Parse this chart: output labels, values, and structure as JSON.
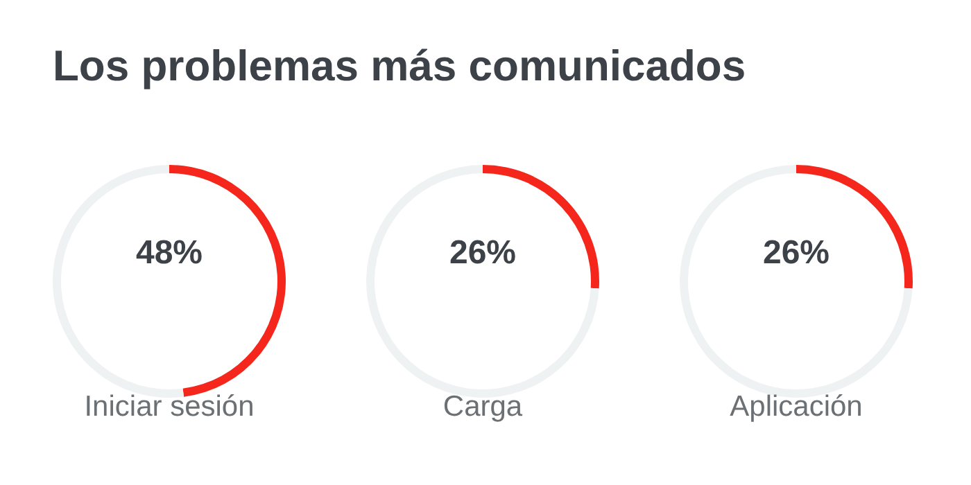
{
  "chart_data": [
    {
      "type": "donut",
      "title": "Los problemas más comunicados",
      "xlabel": "Iniciar sesión",
      "categories": [
        null,
        null
      ],
      "values": [
        48,
        52
      ],
      "colors": [
        "#f5261b",
        "#eff2f3"
      ],
      "value_labels": [
        "48%",
        null
      ]
    },
    {
      "type": "donut",
      "xlabel": "Carga",
      "categories": [
        null,
        null
      ],
      "values": [
        26,
        74
      ],
      "colors": [
        "#f5261b",
        "#eff2f3"
      ],
      "value_labels": [
        "26%",
        null
      ]
    },
    {
      "type": "donut",
      "xlabel": "Aplicación",
      "categories": [
        null,
        null
      ],
      "values": [
        26,
        74
      ],
      "colors": [
        "#f5261b",
        "#eff2f3"
      ],
      "value_labels": [
        "26%",
        null
      ]
    }
  ]
}
